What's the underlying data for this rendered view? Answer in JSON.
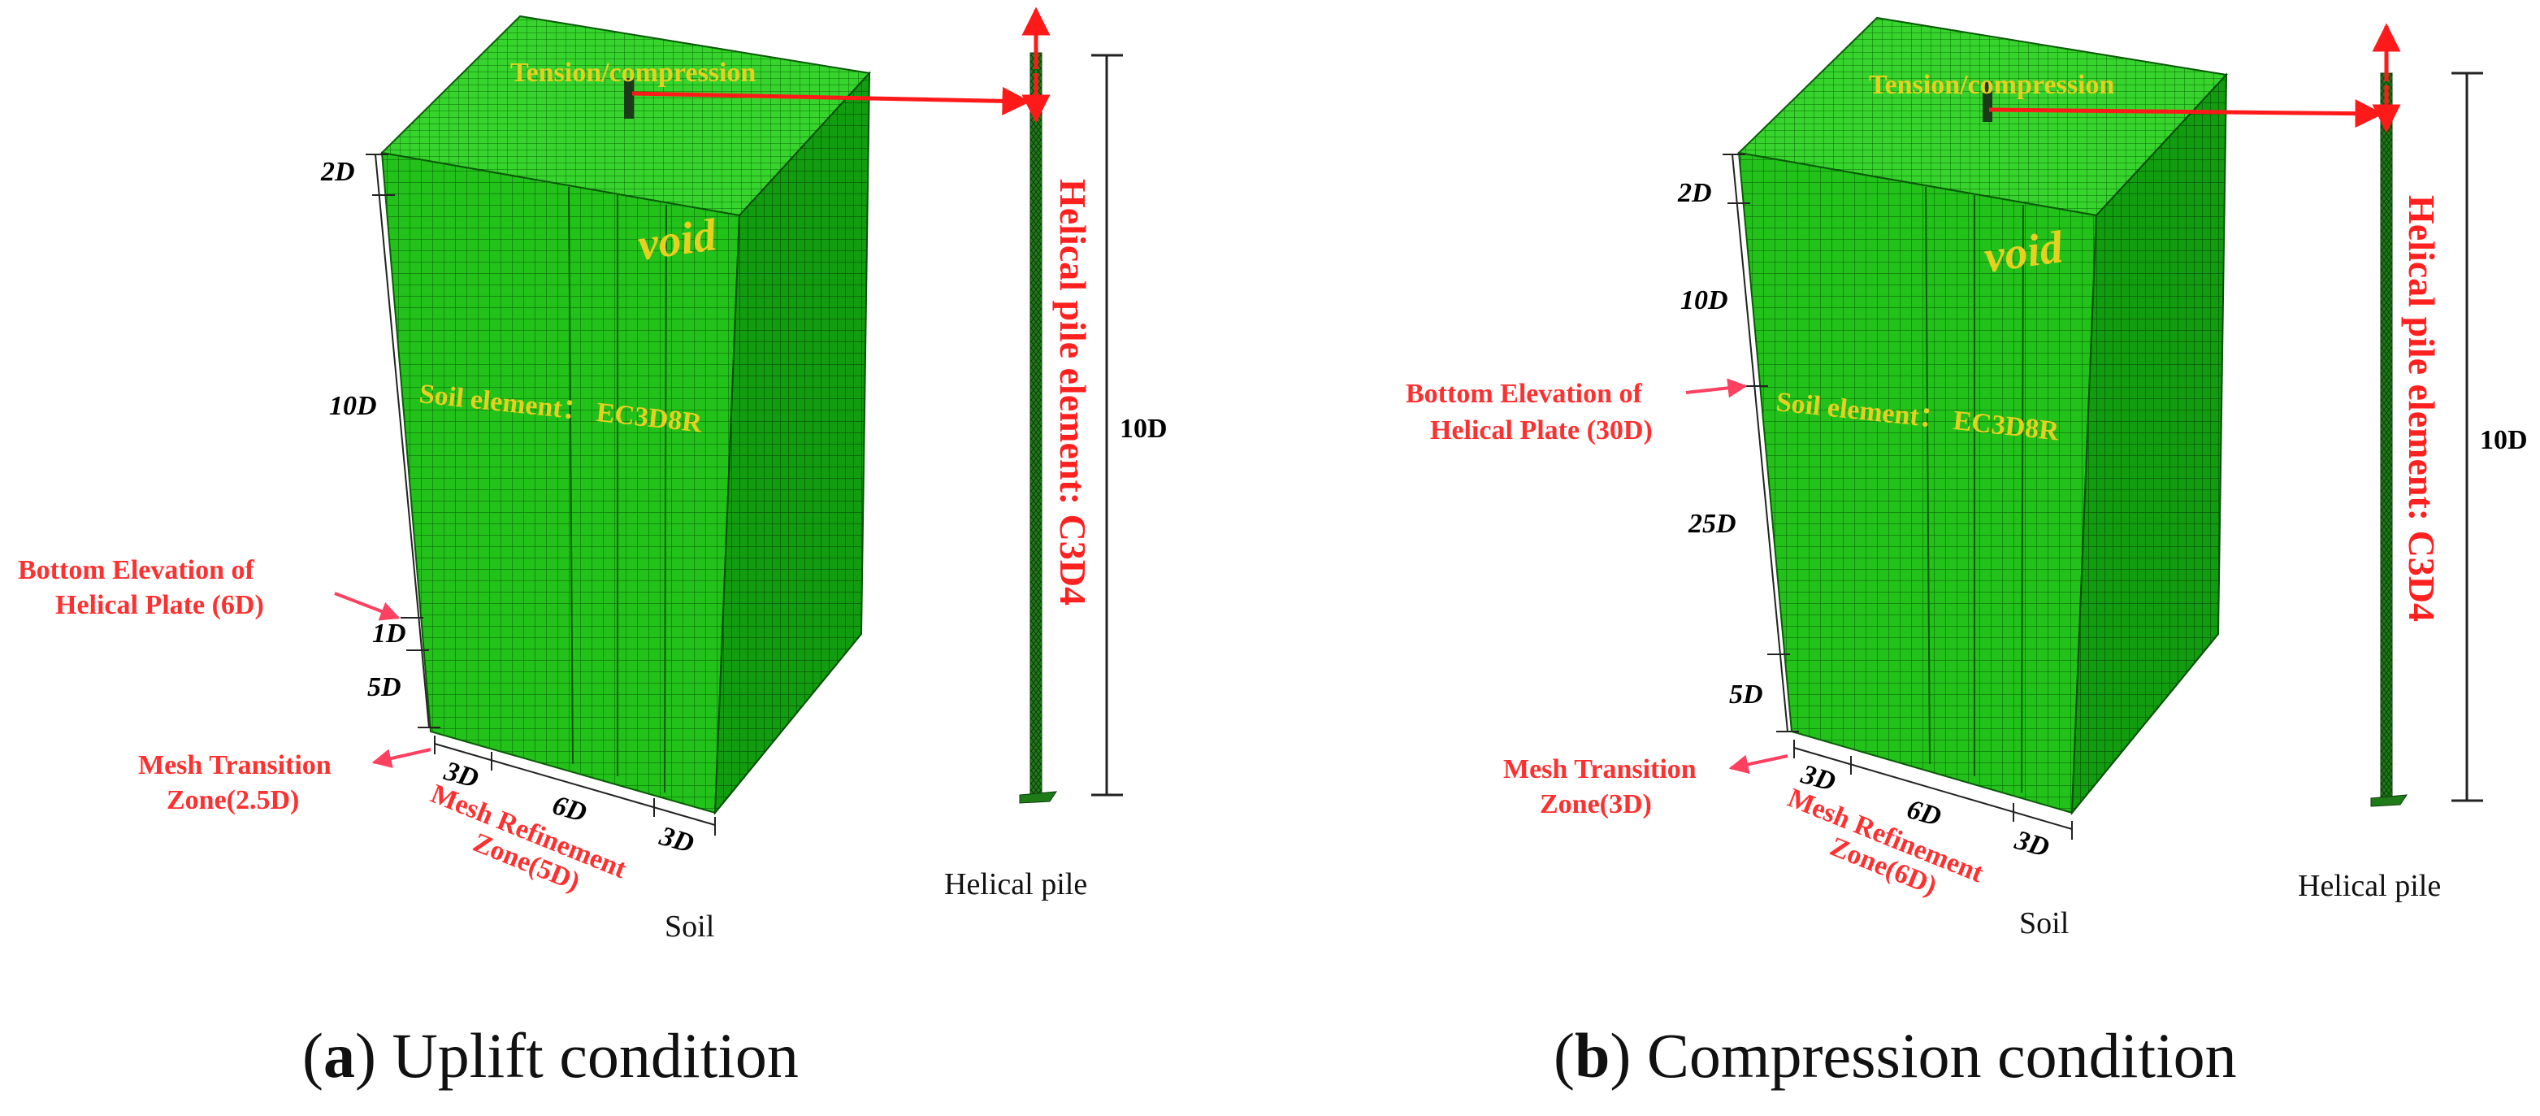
{
  "panel_a": {
    "top_label": "Tension/compression",
    "void_label": "void",
    "soil_element_label": "Soil element： EC3D8R",
    "pile_element_label": "Helical pile element: C3D4",
    "dim_2d": "2D",
    "dim_10d": "10D",
    "dim_1d": "1D",
    "dim_5d": "5D",
    "bottom_elev_line1": "Bottom Elevation of",
    "bottom_elev_line2": "Helical Plate (6D)",
    "mesh_transition_line1": "Mesh Transition",
    "mesh_transition_line2": "Zone(2.5D)",
    "base_3d_left": "3D",
    "base_6d": "6D",
    "base_3d_right": "3D",
    "mesh_refine_line1": "Mesh Refinement",
    "mesh_refine_line2": "Zone(5D)",
    "soil_label": "Soil",
    "pile_length": "10D",
    "pile_label": "Helical pile",
    "caption_letter": "a",
    "caption_text": "Uplift  condition"
  },
  "panel_b": {
    "top_label": "Tension/compression",
    "void_label": "void",
    "soil_element_label": "Soil element： EC3D8R",
    "pile_element_label": "Helical pile element: C3D4",
    "dim_2d": "2D",
    "dim_10d": "10D",
    "dim_25d": "25D",
    "dim_5d": "5D",
    "bottom_elev_line1": "Bottom Elevation of",
    "bottom_elev_line2": "Helical Plate (30D)",
    "mesh_transition_line1": "Mesh Transition",
    "mesh_transition_line2": "Zone(3D)",
    "base_3d_left": "3D",
    "base_6d": "6D",
    "base_3d_right": "3D",
    "mesh_refine_line1": "Mesh Refinement",
    "mesh_refine_line2": "Zone(6D)",
    "soil_label": "Soil",
    "pile_length": "10D",
    "pile_label": "Helical pile",
    "caption_letter": "b",
    "caption_text": "Compression  condition"
  },
  "colors": {
    "mesh_front": "#22c21a",
    "mesh_side": "#119a0e",
    "mesh_top": "#33d62a",
    "arrow_red": "#ff1a1a",
    "label_yellow": "#e8d020",
    "label_red": "#ff3030"
  }
}
